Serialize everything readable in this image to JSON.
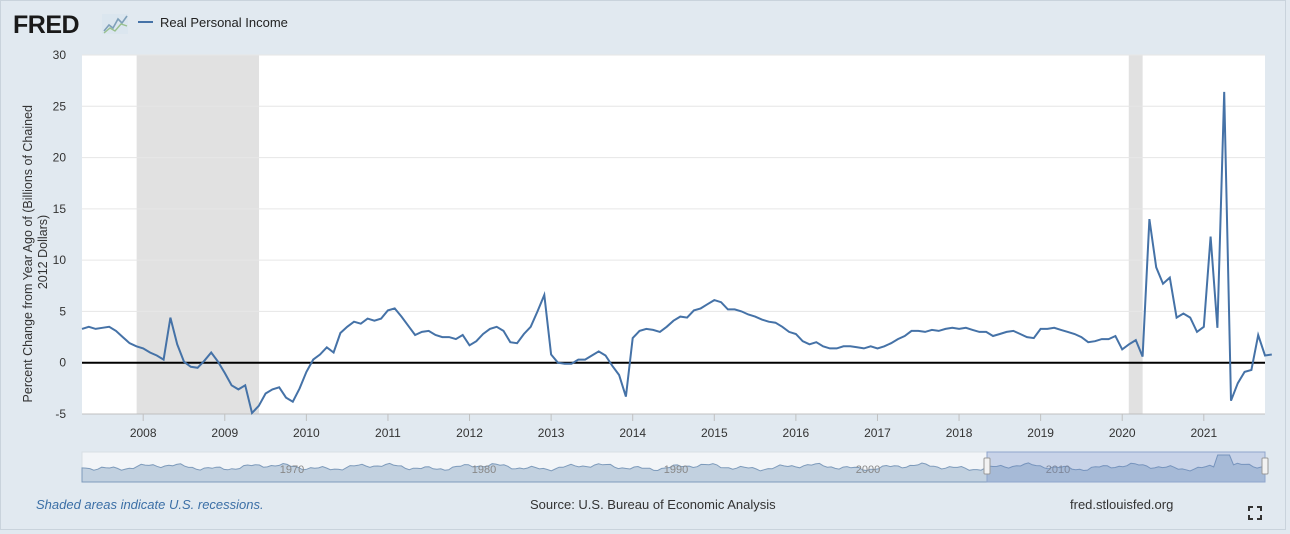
{
  "header": {
    "logo_text": "FRED",
    "logo_icon": "chart-line-icon",
    "legend_series": "Real Personal Income"
  },
  "footer": {
    "recession_note": "Shaded areas indicate U.S. recessions.",
    "source": "Source: U.S. Bureau of Economic Analysis",
    "site": "fred.stlouisfed.org",
    "fullscreen_icon": "fullscreen-icon"
  },
  "navigator": {
    "labels": [
      "1970",
      "1980",
      "1990",
      "2000",
      "2010"
    ]
  },
  "colors": {
    "background": "#e1e9f0",
    "plot": "#ffffff",
    "series": "#4572a7",
    "recession": "#e1e1e1",
    "zero_line": "#000000"
  },
  "chart_data": {
    "type": "line",
    "ylabel": "Percent Change from Year Ago of (Billions of Chained 2012 Dollars)",
    "ylim": [
      -5,
      30
    ],
    "yticks": [
      -5,
      0,
      5,
      10,
      15,
      20,
      25,
      30
    ],
    "xlim": [
      2007.25,
      2021.75
    ],
    "xticks": [
      "2008",
      "2009",
      "2010",
      "2011",
      "2012",
      "2013",
      "2014",
      "2015",
      "2016",
      "2017",
      "2018",
      "2019",
      "2020",
      "2021"
    ],
    "grid": true,
    "recessions": [
      [
        2007.92,
        2009.42
      ],
      [
        2020.08,
        2020.25
      ]
    ],
    "series": [
      {
        "name": "Real Personal Income",
        "start": "2007-04",
        "frequency": "monthly",
        "values": [
          3.3,
          3.5,
          3.3,
          3.4,
          3.5,
          3.1,
          2.5,
          1.9,
          1.6,
          1.4,
          1.0,
          0.7,
          0.3,
          4.4,
          1.8,
          0.1,
          -0.4,
          -0.5,
          0.2,
          1.0,
          0.1,
          -1.0,
          -2.2,
          -2.6,
          -2.2,
          -4.9,
          -4.2,
          -3.0,
          -2.6,
          -2.4,
          -3.4,
          -3.8,
          -2.5,
          -0.9,
          0.3,
          0.8,
          1.5,
          1.0,
          2.9,
          3.5,
          4.0,
          3.8,
          4.3,
          4.1,
          4.3,
          5.1,
          5.3,
          4.5,
          3.6,
          2.7,
          3.0,
          3.1,
          2.7,
          2.5,
          2.5,
          2.3,
          2.7,
          1.7,
          2.1,
          2.8,
          3.3,
          3.5,
          3.1,
          2.0,
          1.9,
          2.8,
          3.5,
          5.0,
          6.6,
          0.8,
          0.0,
          -0.1,
          -0.1,
          0.3,
          0.3,
          0.7,
          1.1,
          0.7,
          -0.3,
          -1.2,
          -3.3,
          2.4,
          3.1,
          3.3,
          3.2,
          3.0,
          3.5,
          4.1,
          4.5,
          4.4,
          5.1,
          5.3,
          5.7,
          6.1,
          5.9,
          5.2,
          5.2,
          5.0,
          4.7,
          4.5,
          4.2,
          4.0,
          3.9,
          3.5,
          3.0,
          2.8,
          2.1,
          1.8,
          2.0,
          1.6,
          1.4,
          1.4,
          1.6,
          1.6,
          1.5,
          1.4,
          1.6,
          1.4,
          1.6,
          1.9,
          2.3,
          2.6,
          3.1,
          3.1,
          3.0,
          3.2,
          3.1,
          3.3,
          3.4,
          3.3,
          3.4,
          3.2,
          3.0,
          3.0,
          2.6,
          2.8,
          3.0,
          3.1,
          2.8,
          2.5,
          2.4,
          3.3,
          3.3,
          3.4,
          3.2,
          3.0,
          2.8,
          2.5,
          2.0,
          2.1,
          2.3,
          2.3,
          2.6,
          1.3,
          1.8,
          2.2,
          0.6,
          14.0,
          9.3,
          7.7,
          8.3,
          4.4,
          4.8,
          4.4,
          3.0,
          3.5,
          12.3,
          3.4,
          26.4,
          -3.7,
          -2.0,
          -0.9,
          -0.7,
          2.7,
          0.7,
          0.8
        ]
      }
    ]
  }
}
